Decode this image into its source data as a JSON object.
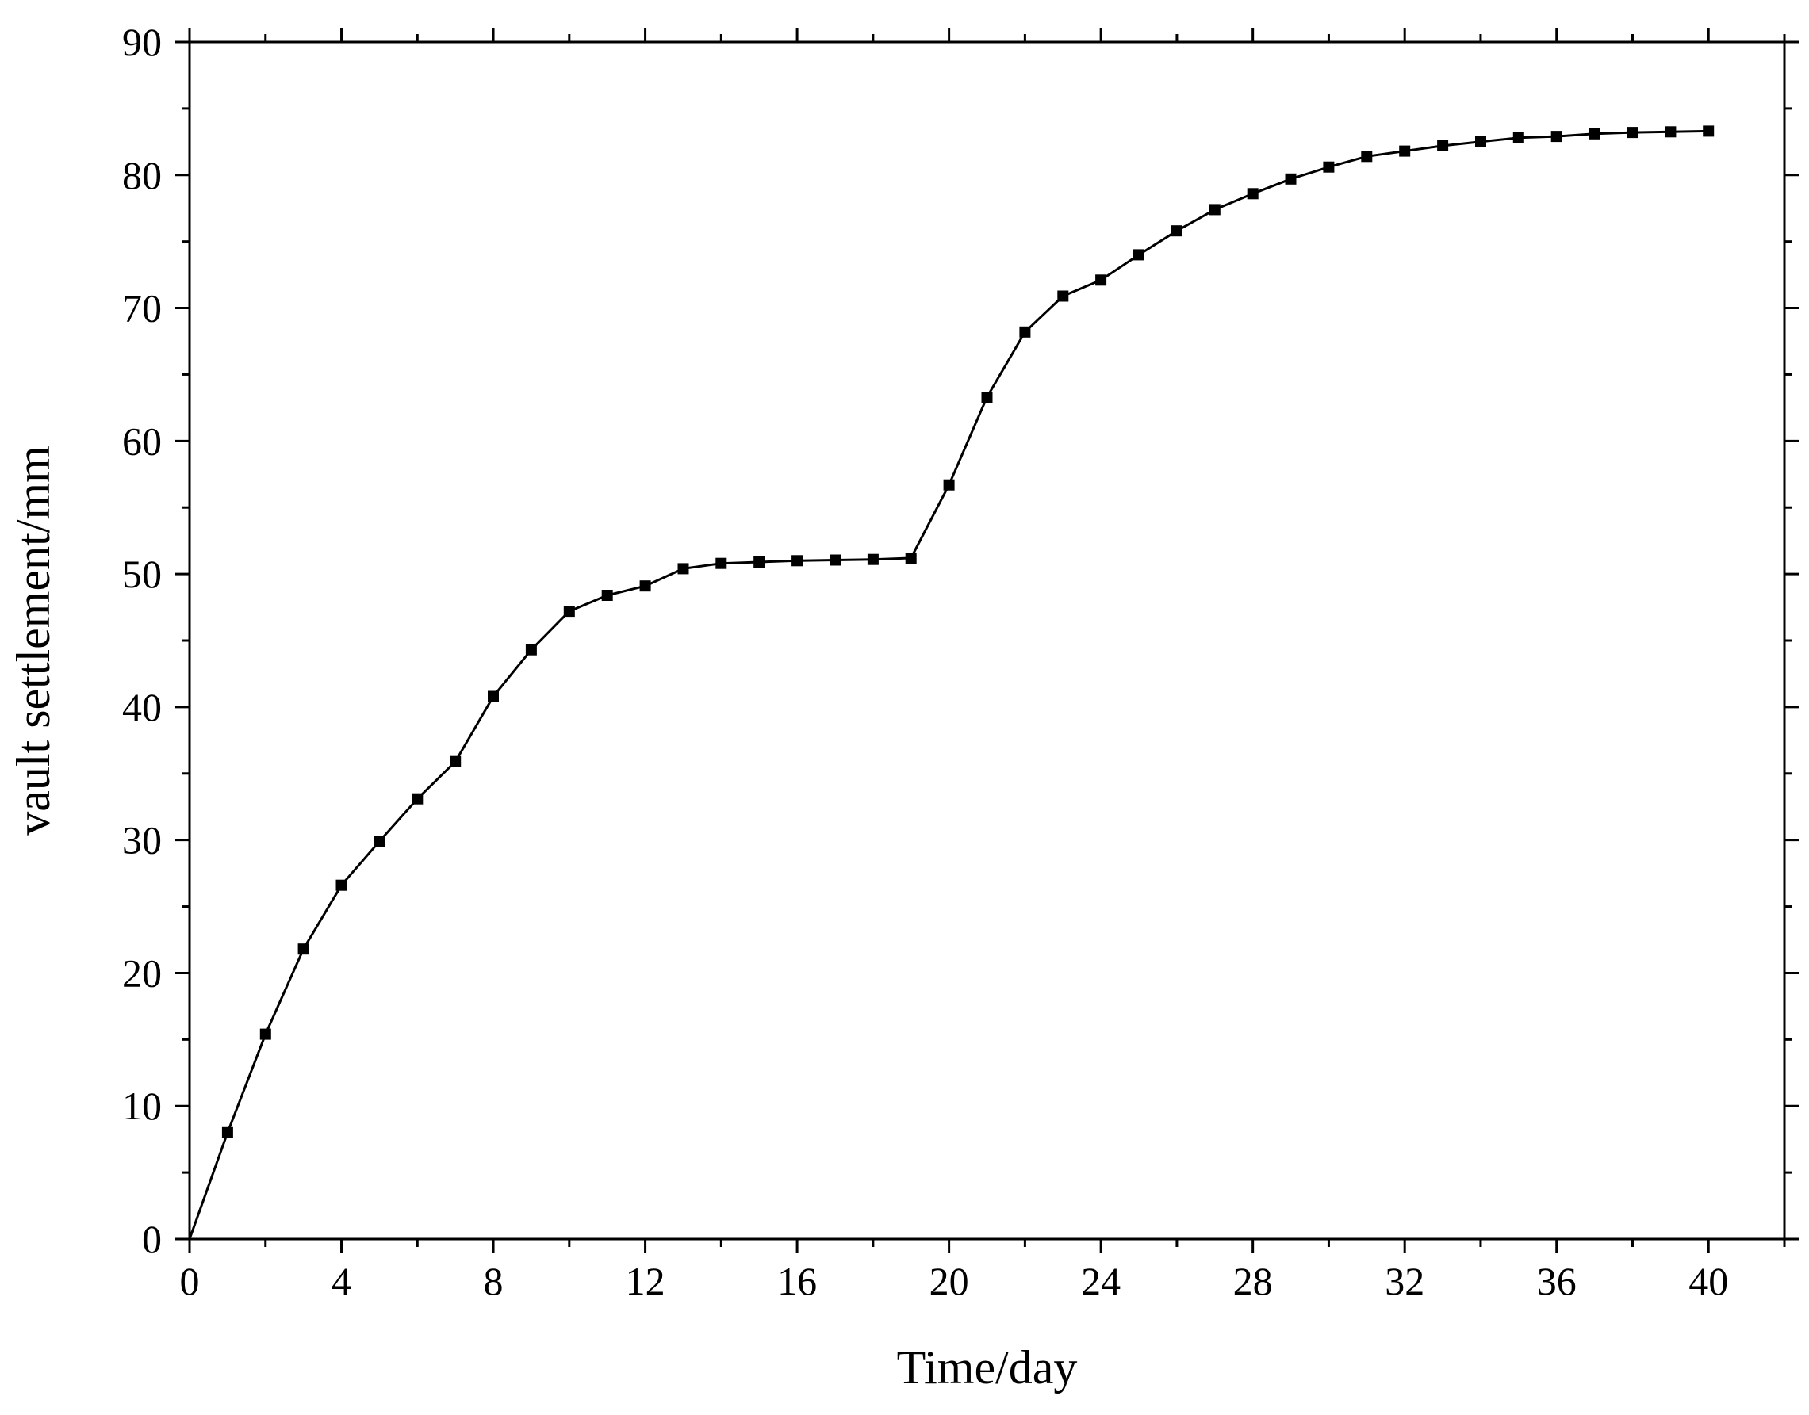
{
  "chart_data": {
    "type": "line",
    "title": "",
    "xlabel": "Time/day",
    "ylabel": "vault settlement/mm",
    "xlim": [
      0,
      42
    ],
    "ylim": [
      0,
      90
    ],
    "x_ticks": [
      0,
      4,
      8,
      12,
      16,
      20,
      24,
      28,
      32,
      36,
      40
    ],
    "x_tick_labels": [
      "0",
      "4",
      "8",
      "12",
      "16",
      "20",
      "24",
      "28",
      "32",
      "36",
      "40"
    ],
    "y_ticks": [
      0,
      10,
      20,
      30,
      40,
      50,
      60,
      70,
      80,
      90
    ],
    "y_tick_labels": [
      "0",
      "10",
      "20",
      "30",
      "40",
      "50",
      "60",
      "70",
      "80",
      "90"
    ],
    "grid": false,
    "legend": "none",
    "marker": "square",
    "line_color": "#000000",
    "series": [
      {
        "x": [
          0,
          1,
          2,
          3,
          4,
          5,
          6,
          7,
          8,
          9,
          10,
          11,
          12,
          13,
          14,
          15,
          16,
          17,
          18,
          19,
          20,
          21,
          22,
          23,
          24,
          25,
          26,
          27,
          28,
          29,
          30,
          31,
          32,
          33,
          34,
          35,
          36,
          37,
          38,
          39,
          40
        ],
        "values": [
          0,
          8.0,
          15.4,
          21.8,
          26.6,
          29.9,
          33.1,
          35.9,
          40.8,
          44.3,
          47.2,
          48.4,
          49.1,
          50.4,
          50.8,
          50.9,
          51.0,
          51.05,
          51.1,
          51.2,
          56.7,
          63.3,
          68.2,
          70.9,
          72.1,
          74.0,
          75.8,
          77.4,
          78.6,
          79.7,
          80.6,
          81.4,
          81.8,
          82.2,
          82.5,
          82.8,
          82.9,
          83.1,
          83.2,
          83.25,
          83.3
        ]
      }
    ]
  }
}
